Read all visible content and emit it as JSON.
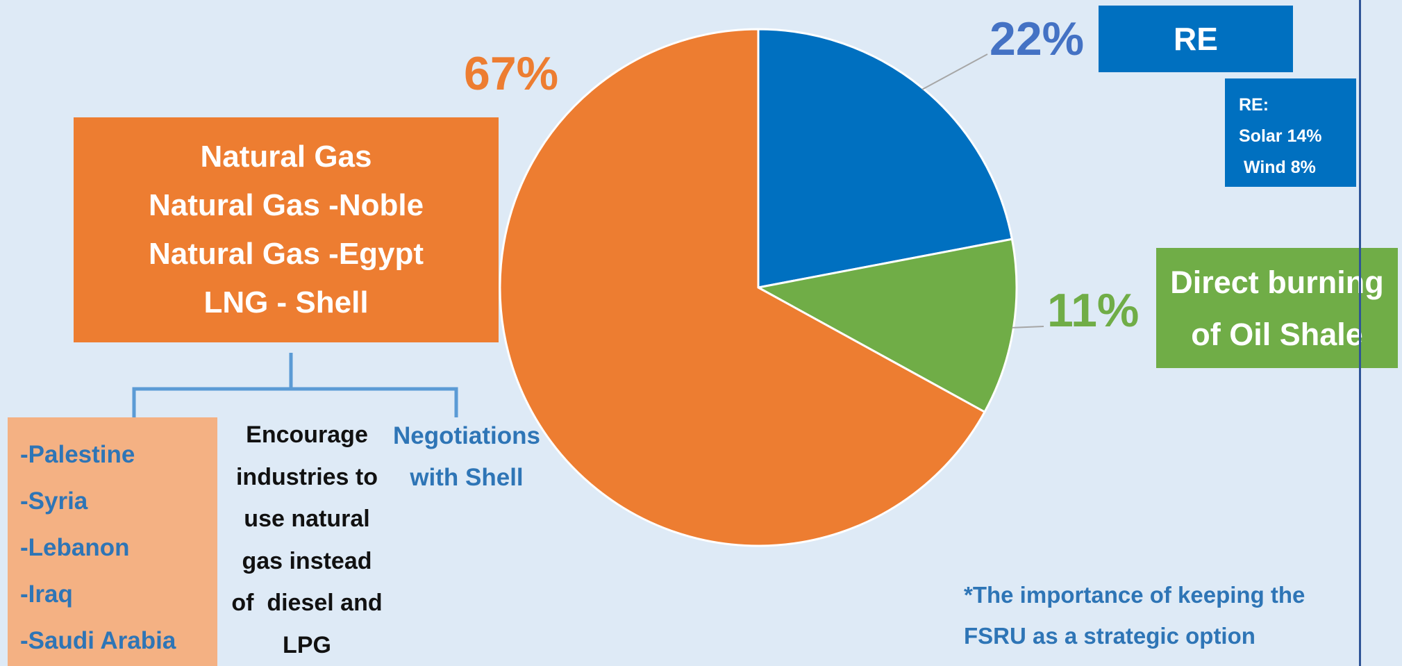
{
  "colors": {
    "background": "#deeaf6",
    "natural_gas": "#ed7d31",
    "re": "#0070c0",
    "oil_shale": "#70ad47",
    "countries_box": "#f4b183",
    "accent_text": "#2e75b6",
    "re_label": "#4472c4",
    "bracket": "#5b9bd5"
  },
  "chart_data": {
    "type": "pie",
    "title": "",
    "slices": [
      {
        "label": "RE",
        "value": 22,
        "display": "22%",
        "color": "#0070c0"
      },
      {
        "label": "Direct burning of Oil Shale",
        "value": 11,
        "display": "11%",
        "color": "#70ad47"
      },
      {
        "label": "Natural Gas",
        "value": 67,
        "display": "67%",
        "color": "#ed7d31"
      }
    ]
  },
  "natural_gas_box": {
    "lines": [
      "Natural Gas",
      "Natural Gas  -Noble",
      "Natural Gas -Egypt",
      "LNG - Shell"
    ]
  },
  "re_box": {
    "label": "RE"
  },
  "re_detail": {
    "lines": [
      "RE:",
      "Solar 14%",
      " Wind 8%"
    ]
  },
  "shale_box": {
    "lines": [
      "Direct burning",
      "of Oil Shale"
    ]
  },
  "countries": [
    "-Palestine",
    "-Syria",
    "-Lebanon",
    "-Iraq",
    "-Saudi Arabia"
  ],
  "encourage": {
    "lines": [
      "Encourage",
      "industries to",
      "use natural",
      "gas instead",
      "of  diesel and",
      "LPG"
    ]
  },
  "negotiations": {
    "lines": [
      "Negotiations",
      "with Shell"
    ]
  },
  "note": {
    "lines": [
      "*The importance of keeping the",
      "FSRU as a strategic option"
    ]
  }
}
